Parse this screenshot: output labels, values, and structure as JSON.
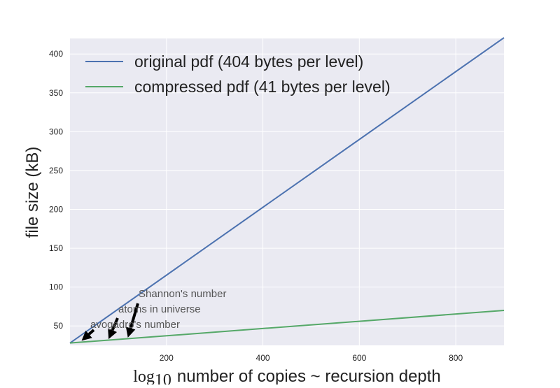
{
  "chart_data": {
    "type": "line",
    "xlabel_prefix": "log",
    "xlabel_subscript": "10",
    "xlabel": "number of copies ~ recursion depth",
    "ylabel": "file size (kB)",
    "xlim": [
      0,
      900
    ],
    "ylim": [
      25,
      420
    ],
    "x_ticks": [
      200,
      400,
      600,
      800
    ],
    "y_ticks": [
      50,
      100,
      150,
      200,
      250,
      300,
      350,
      400
    ],
    "grid": true,
    "legend_position": "top-left",
    "series": [
      {
        "name": "original pdf (404 bytes per level)",
        "color": "#4c72b0",
        "x": [
          0,
          900
        ],
        "y": [
          28,
          421
        ]
      },
      {
        "name": "compressed pdf (41 bytes per level)",
        "color": "#55a868",
        "x": [
          0,
          900
        ],
        "y": [
          28,
          70
        ]
      }
    ],
    "annotations": [
      {
        "text": "avogadro's number",
        "x": 24,
        "y": 31
      },
      {
        "text": "atoms in universe",
        "x": 80,
        "y": 33
      },
      {
        "text": "Shannon's number",
        "x": 120,
        "y": 35
      }
    ]
  }
}
